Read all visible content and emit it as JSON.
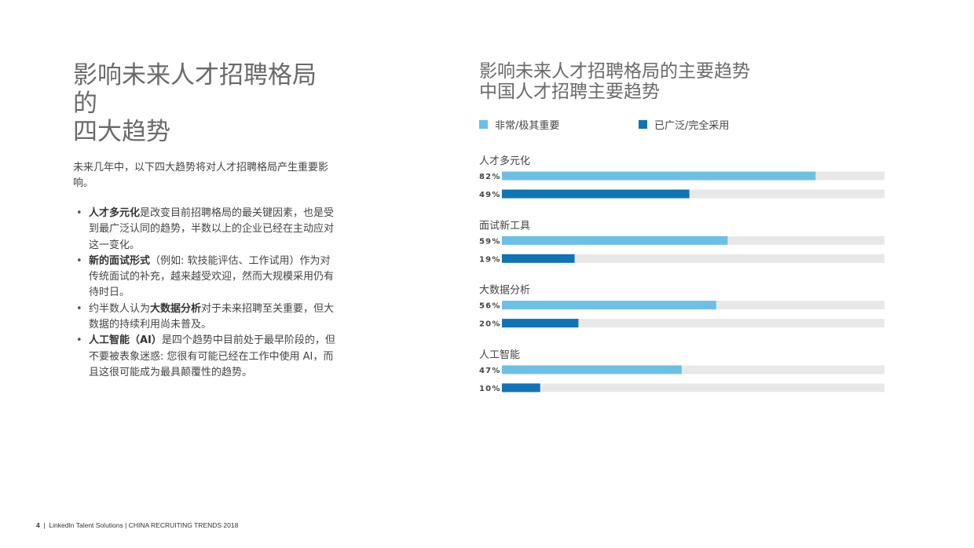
{
  "left": {
    "title_line1": "影响未来人才招聘格局的",
    "title_line2": "四大趋势",
    "intro": "未来几年中，以下四大趋势将对人才招聘格局产生重要影响。",
    "bullets": [
      {
        "bold": "人才多元化",
        "text": "是改变目前招聘格局的最关键因素，也是受到最广泛认同的趋势，半数以上的企业已经在主动应对这一变化。"
      },
      {
        "bold": "新的面试形式",
        "text": "（例如: 软技能评估、工作试用）作为对传统面试的补充，越来越受欢迎，然而大规模采用仍有待时日。"
      },
      {
        "pre": "约半数人认为",
        "bold": "大数据分析",
        "text": "对于未来招聘至关重要，但大数据的持续利用尚未普及。"
      },
      {
        "bold": "人工智能（AI）",
        "text": "是四个趋势中目前处于最早阶段的，但不要被表象迷惑: 您很有可能已经在工作中使用 AI，而且这很可能成为最具颠覆性的趋势。"
      }
    ]
  },
  "colors": {
    "light": "#6cc0e5",
    "dark": "#0f74b6",
    "track": "#e8e8e8"
  },
  "chart_data": {
    "type": "bar",
    "orientation": "horizontal",
    "title_line1": "影响未来人才招聘格局的主要趋势",
    "title_line2": "中国人才招聘主要趋势",
    "legend": [
      "非常/极其重要",
      "已广泛/完全采用"
    ],
    "legend_position": "top",
    "xlim": [
      0,
      100
    ],
    "unit": "%",
    "categories": [
      "人才多元化",
      "面试新工具",
      "大数据分析",
      "人工智能"
    ],
    "series": [
      {
        "name": "非常/极其重要",
        "values": [
          82,
          59,
          56,
          47
        ]
      },
      {
        "name": "已广泛/完全采用",
        "values": [
          49,
          19,
          20,
          10
        ]
      }
    ],
    "grid": false
  },
  "footer": {
    "page": "4",
    "text": "LinkedIn Talent Solutions | CHINA RECRUITING TRENDS 2018"
  }
}
